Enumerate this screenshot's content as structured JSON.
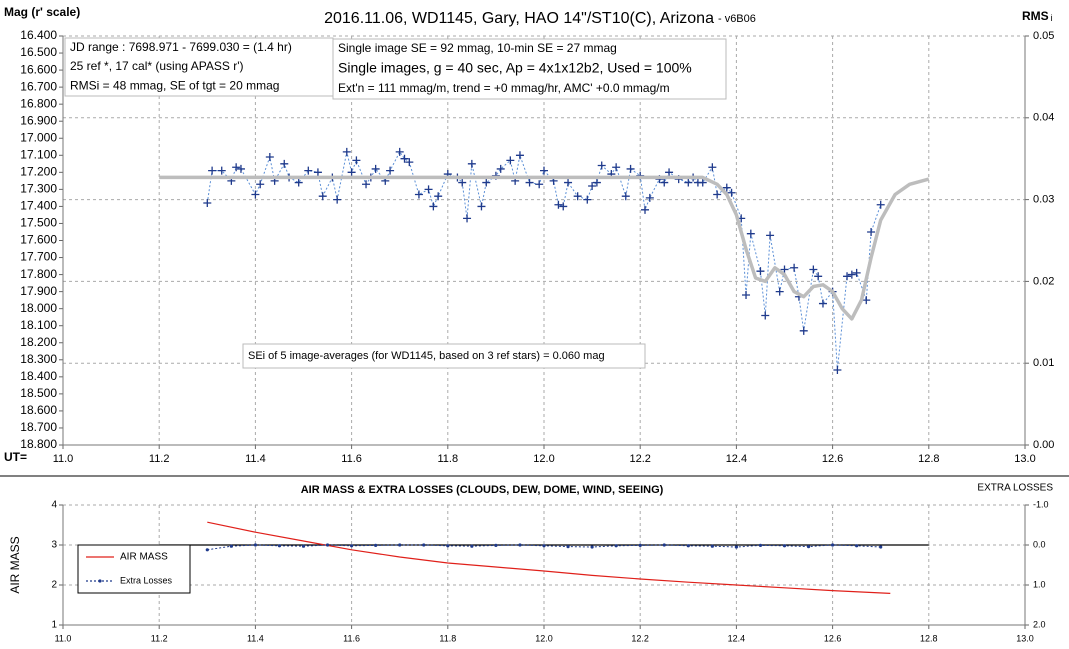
{
  "chart_data": [
    {
      "type": "line",
      "title": "2016.11.06,  WD1145, Gary, HAO  14\"/ST10(C), Arizona",
      "subtitle": "- v6B06",
      "y_label": "Mag (r' scale)",
      "y2_label": "RMS",
      "y2_label_sub": "i",
      "x_label": "UT=",
      "xlim": [
        11.0,
        13.0
      ],
      "xticks": [
        {
          "value": 11.0,
          "label": "11.0"
        },
        11.2,
        11.4,
        11.6,
        11.8,
        {
          "value": 12.0,
          "label": "12.0"
        },
        12.2,
        12.4,
        12.6,
        12.8,
        {
          "value": 13.0,
          "label": "13.0"
        }
      ],
      "ylim": [
        18.8,
        16.4
      ],
      "yticks": [
        {
          "value": 16.4,
          "label": "16.400"
        },
        {
          "value": 16.5,
          "label": "16.500"
        },
        {
          "value": 16.6,
          "label": "16.600"
        },
        {
          "value": 16.7,
          "label": "16.700"
        },
        {
          "value": 16.8,
          "label": "16.800"
        },
        {
          "value": 16.9,
          "label": "16.900"
        },
        {
          "value": 17.0,
          "label": "17.000"
        },
        {
          "value": 17.1,
          "label": "17.100"
        },
        {
          "value": 17.2,
          "label": "17.200"
        },
        {
          "value": 17.3,
          "label": "17.300"
        },
        {
          "value": 17.4,
          "label": "17.400"
        },
        {
          "value": 17.5,
          "label": "17.500"
        },
        {
          "value": 17.6,
          "label": "17.600"
        },
        {
          "value": 17.7,
          "label": "17.700"
        },
        {
          "value": 17.8,
          "label": "17.800"
        },
        {
          "value": 17.9,
          "label": "17.900"
        },
        {
          "value": 18.0,
          "label": "18.000"
        },
        {
          "value": 18.1,
          "label": "18.100"
        },
        {
          "value": 18.2,
          "label": "18.200"
        },
        {
          "value": 18.3,
          "label": "18.300"
        },
        {
          "value": 18.4,
          "label": "18.400"
        },
        {
          "value": 18.5,
          "label": "18.500"
        },
        {
          "value": 18.6,
          "label": "18.600"
        },
        {
          "value": 18.7,
          "label": "18.700"
        },
        {
          "value": 18.8,
          "label": "18.800"
        }
      ],
      "y2lim": [
        0.0,
        0.05
      ],
      "y2ticks": [
        {
          "value": 0.0,
          "label": "0.00"
        },
        0.01,
        0.02,
        0.03,
        0.04,
        0.05
      ],
      "grid": {
        "x": true,
        "y": false,
        "y2": true
      },
      "series": [
        {
          "color": "#1f3a8c",
          "line_color": "#5b8fd6",
          "line": "dashed",
          "marker": "plus",
          "x": [
            11.3,
            11.31,
            11.33,
            11.35,
            11.36,
            11.37,
            11.4,
            11.41,
            11.43,
            11.44,
            11.46,
            11.47,
            11.49,
            11.51,
            11.53,
            11.54,
            11.56,
            11.57,
            11.59,
            11.6,
            11.61,
            11.63,
            11.64,
            11.65,
            11.67,
            11.68,
            11.7,
            11.71,
            11.72,
            11.74,
            11.76,
            11.77,
            11.78,
            11.8,
            11.82,
            11.83,
            11.84,
            11.85,
            11.87,
            11.88,
            11.9,
            11.91,
            11.93,
            11.94,
            11.95,
            11.97,
            11.99,
            12.0,
            12.02,
            12.03,
            12.04,
            12.05,
            12.07,
            12.09,
            12.1,
            12.11,
            12.12,
            12.14,
            12.15,
            12.17,
            12.18,
            12.2,
            12.21,
            12.22,
            12.24,
            12.25,
            12.26,
            12.28,
            12.3,
            12.31,
            12.32,
            12.33,
            12.35,
            12.36,
            12.38,
            12.39,
            12.41,
            12.42,
            12.43,
            12.45,
            12.46,
            12.47,
            12.49,
            12.5,
            12.52,
            12.53,
            12.54,
            12.56,
            12.57,
            12.58,
            12.6,
            12.61,
            12.63,
            12.64,
            12.65,
            12.67,
            12.68,
            12.7
          ],
          "values": [
            17.38,
            17.19,
            17.19,
            17.25,
            17.17,
            17.18,
            17.33,
            17.27,
            17.11,
            17.25,
            17.15,
            17.23,
            17.26,
            17.19,
            17.2,
            17.34,
            17.23,
            17.36,
            17.08,
            17.2,
            17.13,
            17.27,
            17.23,
            17.18,
            17.25,
            17.19,
            17.08,
            17.12,
            17.14,
            17.33,
            17.3,
            17.4,
            17.34,
            17.21,
            17.23,
            17.26,
            17.47,
            17.15,
            17.4,
            17.26,
            17.22,
            17.18,
            17.13,
            17.25,
            17.1,
            17.26,
            17.27,
            17.19,
            17.25,
            17.39,
            17.4,
            17.26,
            17.34,
            17.36,
            17.28,
            17.26,
            17.16,
            17.21,
            17.17,
            17.34,
            17.18,
            17.22,
            17.42,
            17.35,
            17.24,
            17.26,
            17.2,
            17.24,
            17.26,
            17.23,
            17.26,
            17.26,
            17.17,
            17.33,
            17.29,
            17.32,
            17.47,
            17.92,
            17.56,
            17.78,
            18.04,
            17.57,
            17.9,
            17.77,
            17.76,
            17.93,
            18.13,
            17.77,
            17.81,
            17.97,
            17.9,
            18.36,
            17.81,
            17.8,
            17.79,
            17.95,
            17.55,
            17.39
          ]
        },
        {
          "color": "#bdbdbd",
          "line": "thick",
          "marker": "none",
          "x": [
            11.2,
            12.33,
            12.36,
            12.38,
            12.4,
            12.42,
            12.44,
            12.46,
            12.48,
            12.5,
            12.52,
            12.54,
            12.56,
            12.58,
            12.6,
            12.62,
            12.64,
            12.66,
            12.68,
            12.7,
            12.73,
            12.76,
            12.8
          ],
          "values": [
            17.23,
            17.23,
            17.27,
            17.33,
            17.45,
            17.65,
            17.82,
            17.84,
            17.76,
            17.8,
            17.9,
            17.93,
            17.87,
            17.86,
            17.9,
            18.0,
            18.06,
            17.95,
            17.7,
            17.48,
            17.33,
            17.27,
            17.24
          ]
        }
      ],
      "annotations": [
        {
          "lines": [
            "JD range  : 7698.971 - 7699.030  = (1.4 hr)",
            "25 ref *, 17 cal* (using APASS r')",
            "RMSi = 48 mmag, SE of tgt = 20 mmag"
          ]
        },
        {
          "lines": [
            "Single image SE = 92 mmag, 10-min SE = 27 mmag",
            "Single images, g = 40 sec, Ap = 4x1x12b2, Used = 100%",
            "Ext'n = 111 mmag/m, trend = +0 mmag/hr, AMC' +0.0 mmag/m"
          ]
        },
        {
          "lines": [
            "SEi of 5 image-averages (for WD1145, based on 3 ref stars) = 0.060 mag"
          ]
        }
      ]
    },
    {
      "type": "line",
      "title": "AIR MASS & EXTRA LOSSES (CLOUDS, DEW, DOME, WIND, SEEING)",
      "y_label": "AIR MASS",
      "y2_label": "EXTRA LOSSES",
      "xlim": [
        11.0,
        13.0
      ],
      "xticks": [
        {
          "value": 11.0,
          "label": "11.0"
        },
        11.2,
        11.4,
        11.6,
        11.8,
        {
          "value": 12.0,
          "label": "12.0"
        },
        12.2,
        12.4,
        12.6,
        12.8,
        {
          "value": 13.0,
          "label": "13.0"
        }
      ],
      "ylim": [
        1,
        4
      ],
      "yticks": [
        1,
        2,
        3,
        4
      ],
      "y2lim": [
        2.0,
        -1.0
      ],
      "y2ticks": [
        {
          "value": -1.0,
          "label": "-1.0"
        },
        {
          "value": 0.0,
          "label": "0.0"
        },
        {
          "value": 1.0,
          "label": "1.0"
        },
        {
          "value": 2.0,
          "label": "2.0"
        }
      ],
      "grid": {
        "x": true,
        "y": true,
        "y2": false
      },
      "legend": "left",
      "baseline": {
        "y2": 0.0,
        "x": [
          11.2,
          12.8
        ]
      },
      "series": [
        {
          "name": "AIR MASS",
          "color": "#e0201a",
          "line": "solid",
          "marker": "none",
          "x": [
            11.3,
            11.4,
            11.5,
            11.6,
            11.7,
            11.8,
            11.9,
            12.0,
            12.1,
            12.2,
            12.3,
            12.4,
            12.5,
            12.6,
            12.72
          ],
          "values": [
            3.57,
            3.32,
            3.1,
            2.88,
            2.7,
            2.55,
            2.45,
            2.35,
            2.24,
            2.15,
            2.07,
            2.0,
            1.93,
            1.86,
            1.79
          ]
        },
        {
          "name": "Extra Losses",
          "color": "#1f3a8c",
          "line": "dashed",
          "marker": "dot",
          "axis": "y2",
          "x": [
            11.3,
            11.35,
            11.4,
            11.45,
            11.5,
            11.55,
            11.6,
            11.65,
            11.7,
            11.75,
            11.8,
            11.85,
            11.9,
            11.95,
            12.0,
            12.05,
            12.1,
            12.15,
            12.2,
            12.25,
            12.3,
            12.35,
            12.4,
            12.45,
            12.5,
            12.55,
            12.6,
            12.65,
            12.7
          ],
          "values": [
            0.12,
            0.03,
            0.0,
            0.02,
            0.03,
            0.0,
            0.02,
            0.01,
            0.0,
            0.0,
            0.02,
            0.03,
            0.01,
            0.0,
            0.02,
            0.04,
            0.05,
            0.02,
            0.01,
            0.0,
            0.02,
            0.03,
            0.05,
            0.01,
            0.02,
            0.04,
            0.0,
            0.02,
            0.05
          ]
        }
      ]
    }
  ]
}
